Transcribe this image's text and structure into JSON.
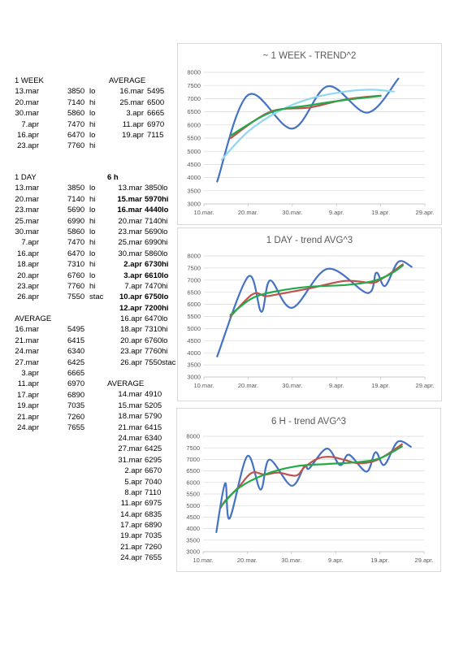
{
  "colors": {
    "actual": "#4472c4",
    "avg": "#c0504d",
    "trend": "#22a94a",
    "trend_light": "#8fd8f0",
    "grid": "#d9d9d9"
  },
  "tables": {
    "week": {
      "title": "1 WEEK",
      "rows": [
        [
          "13.mar",
          "3850",
          "lo"
        ],
        [
          "20.mar",
          "7140",
          "hi"
        ],
        [
          "30.mar",
          "5860",
          "lo"
        ],
        [
          "7.apr",
          "7470",
          "hi"
        ],
        [
          "16.apr",
          "6470",
          "lo"
        ],
        [
          "23.apr",
          "7760",
          "hi"
        ]
      ]
    },
    "week_avg": {
      "title": "AVERAGE",
      "rows": [
        [
          "16.mar",
          "5495"
        ],
        [
          "25.mar",
          "6500"
        ],
        [
          "3.apr",
          "6665"
        ],
        [
          "11.apr",
          "6970"
        ],
        [
          "19.apr",
          "7115"
        ]
      ]
    },
    "day": {
      "title": "1 DAY",
      "rows": [
        [
          "13.mar",
          "3850",
          "lo"
        ],
        [
          "20.mar",
          "7140",
          "hi"
        ],
        [
          "23.mar",
          "5690",
          "lo"
        ],
        [
          "25.mar",
          "6990",
          "hi"
        ],
        [
          "30.mar",
          "5860",
          "lo"
        ],
        [
          "7.apr",
          "7470",
          "hi"
        ],
        [
          "16.apr",
          "6470",
          "lo"
        ],
        [
          "18.apr",
          "7310",
          "hi"
        ],
        [
          "20.apr",
          "6760",
          "lo"
        ],
        [
          "23.apr",
          "7760",
          "hi"
        ],
        [
          "26.apr",
          "7550",
          "stac"
        ]
      ]
    },
    "day_avg": {
      "title": "AVERAGE",
      "rows": [
        [
          "16.mar",
          "5495"
        ],
        [
          "21.mar",
          "6415"
        ],
        [
          "24.mar",
          "6340"
        ],
        [
          "27.mar",
          "6425"
        ],
        [
          "3.apr",
          "6665"
        ],
        [
          "11.apr",
          "6970"
        ],
        [
          "17.apr",
          "6890"
        ],
        [
          "19.apr",
          "7035"
        ],
        [
          "21.apr",
          "7260"
        ],
        [
          "24.apr",
          "7655"
        ]
      ]
    },
    "h6": {
      "title": "6 h",
      "rows": [
        {
          "d": "13.mar",
          "v": "3850",
          "t": "lo",
          "bold": false
        },
        {
          "d": "15.mar",
          "v": "5970",
          "t": "hi",
          "bold": true
        },
        {
          "d": "16.mar",
          "v": "4440",
          "t": "lo",
          "bold": true
        },
        {
          "d": "20.mar",
          "v": "7140",
          "t": "hi",
          "bold": false
        },
        {
          "d": "23.mar",
          "v": "5690",
          "t": "lo",
          "bold": false
        },
        {
          "d": "25.mar",
          "v": "6990",
          "t": "hi",
          "bold": false
        },
        {
          "d": "30.mar",
          "v": "5860",
          "t": "lo",
          "bold": false
        },
        {
          "d": "2.apr",
          "v": "6730",
          "t": "hi",
          "bold": true
        },
        {
          "d": "3.apr",
          "v": "6610",
          "t": "lo",
          "bold": true
        },
        {
          "d": "7.apr",
          "v": "7470",
          "t": "hi",
          "bold": false
        },
        {
          "d": "10.apr",
          "v": "6750",
          "t": "lo",
          "bold": true
        },
        {
          "d": "12.apr",
          "v": "7200",
          "t": "hi",
          "bold": true
        },
        {
          "d": "16.apr",
          "v": "6470",
          "t": "lo",
          "bold": false
        },
        {
          "d": "18.apr",
          "v": "7310",
          "t": "hi",
          "bold": false
        },
        {
          "d": "20.apr",
          "v": "6760",
          "t": "lo",
          "bold": false
        },
        {
          "d": "23.apr",
          "v": "7760",
          "t": "hi",
          "bold": false
        },
        {
          "d": "26.apr",
          "v": "7550",
          "t": "stac",
          "bold": false
        }
      ]
    },
    "h6_avg": {
      "title": "AVERAGE",
      "rows": [
        [
          "14.mar",
          "4910"
        ],
        [
          "15.mar",
          "5205"
        ],
        [
          "18.mar",
          "5790"
        ],
        [
          "21.mar",
          "6415"
        ],
        [
          "24.mar",
          "6340"
        ],
        [
          "27.mar",
          "6425"
        ],
        [
          "31.mar",
          "6295"
        ],
        [
          "2.apr",
          "6670"
        ],
        [
          "5.apr",
          "7040"
        ],
        [
          "8.apr",
          "7110"
        ],
        [
          "11.apr",
          "6975"
        ],
        [
          "14.apr",
          "6835"
        ],
        [
          "17.apr",
          "6890"
        ],
        [
          "19.apr",
          "7035"
        ],
        [
          "21.apr",
          "7260"
        ],
        [
          "24.apr",
          "7655"
        ]
      ]
    }
  },
  "chart_data": [
    {
      "type": "line",
      "title": "~ 1 WEEK - TREND^2",
      "x_ticks": [
        "10.mar.",
        "20.mar.",
        "30.mar.",
        "9.apr.",
        "19.apr.",
        "29.apr."
      ],
      "xlim": [
        "10.mar",
        "29.apr"
      ],
      "y_ticks": [
        3000,
        3500,
        4000,
        4500,
        5000,
        5500,
        6000,
        6500,
        7000,
        7500,
        8000
      ],
      "ylim": [
        3000,
        8000
      ],
      "grid": true,
      "legend": "none",
      "series": [
        {
          "color": "#4472c4",
          "smooth": true,
          "width": 2.2,
          "points": [
            [
              "13.mar",
              3850
            ],
            [
              "20.mar",
              7140
            ],
            [
              "30.mar",
              5860
            ],
            [
              "7.apr",
              7470
            ],
            [
              "16.apr",
              6470
            ],
            [
              "23.apr",
              7760
            ]
          ]
        },
        {
          "color": "#c0504d",
          "smooth": true,
          "width": 2.2,
          "points": [
            [
              "16.mar",
              5495
            ],
            [
              "25.mar",
              6500
            ],
            [
              "3.apr",
              6665
            ],
            [
              "11.apr",
              6970
            ],
            [
              "19.apr",
              7115
            ]
          ]
        },
        {
          "color": "#8fd8f0",
          "smooth": true,
          "width": 2.2,
          "points": [
            [
              "14.mar",
              4680
            ],
            [
              "20.mar",
              5750
            ],
            [
              "27.mar",
              6530
            ],
            [
              "3.apr",
              7000
            ],
            [
              "11.apr",
              7270
            ],
            [
              "17.apr",
              7340
            ],
            [
              "22.apr",
              7270
            ]
          ]
        },
        {
          "color": "#22a94a",
          "smooth": true,
          "width": 2.2,
          "points": [
            [
              "16.mar",
              5590
            ],
            [
              "25.mar",
              6470
            ],
            [
              "3.apr",
              6750
            ],
            [
              "11.apr",
              6950
            ],
            [
              "19.apr",
              7100
            ]
          ]
        }
      ]
    },
    {
      "type": "line",
      "title": "1 DAY - trend AVG^3",
      "x_ticks": [
        "10.mar.",
        "20.mar.",
        "30.mar.",
        "9.apr.",
        "19.apr.",
        "29.apr."
      ],
      "xlim": [
        "10.mar",
        "29.apr"
      ],
      "y_ticks": [
        3000,
        3500,
        4000,
        4500,
        5000,
        5500,
        6000,
        6500,
        7000,
        7500,
        8000
      ],
      "ylim": [
        3000,
        8000
      ],
      "grid": true,
      "legend": "none",
      "series": [
        {
          "color": "#4472c4",
          "smooth": true,
          "width": 2.2,
          "points": [
            [
              "13.mar",
              3850
            ],
            [
              "20.mar",
              7140
            ],
            [
              "23.mar",
              5690
            ],
            [
              "25.mar",
              6990
            ],
            [
              "30.mar",
              5860
            ],
            [
              "7.apr",
              7470
            ],
            [
              "16.apr",
              6470
            ],
            [
              "18.apr",
              7310
            ],
            [
              "20.apr",
              6760
            ],
            [
              "23.apr",
              7760
            ],
            [
              "26.apr",
              7550
            ]
          ]
        },
        {
          "color": "#c0504d",
          "smooth": true,
          "width": 2.2,
          "points": [
            [
              "16.mar",
              5495
            ],
            [
              "21.mar",
              6415
            ],
            [
              "24.mar",
              6340
            ],
            [
              "27.mar",
              6425
            ],
            [
              "3.apr",
              6665
            ],
            [
              "11.apr",
              6970
            ],
            [
              "17.apr",
              6890
            ],
            [
              "19.apr",
              7035
            ],
            [
              "21.apr",
              7260
            ],
            [
              "24.apr",
              7655
            ]
          ]
        },
        {
          "color": "#22a94a",
          "smooth": true,
          "width": 2.2,
          "points": [
            [
              "16.mar",
              5560
            ],
            [
              "21.mar",
              6260
            ],
            [
              "27.mar",
              6560
            ],
            [
              "3.apr",
              6730
            ],
            [
              "11.apr",
              6800
            ],
            [
              "17.apr",
              6950
            ],
            [
              "21.apr",
              7230
            ],
            [
              "24.apr",
              7600
            ]
          ]
        }
      ]
    },
    {
      "type": "line",
      "title": "6 H - trend AVG^3",
      "x_ticks": [
        "10.mar.",
        "20.mar.",
        "30.mar.",
        "9.apr.",
        "19.apr.",
        "29.apr."
      ],
      "xlim": [
        "10.mar",
        "29.apr"
      ],
      "y_ticks": [
        3000,
        3500,
        4000,
        4500,
        5000,
        5500,
        6000,
        6500,
        7000,
        7500,
        8000
      ],
      "ylim": [
        3000,
        8000
      ],
      "grid": true,
      "legend": "none",
      "series": [
        {
          "color": "#4472c4",
          "smooth": true,
          "width": 2.2,
          "points": [
            [
              "13.mar",
              3850
            ],
            [
              "15.mar",
              5970
            ],
            [
              "16.mar",
              4440
            ],
            [
              "20.mar",
              7140
            ],
            [
              "23.mar",
              5690
            ],
            [
              "25.mar",
              6990
            ],
            [
              "30.mar",
              5860
            ],
            [
              "2.apr",
              6730
            ],
            [
              "3.apr",
              6610
            ],
            [
              "7.apr",
              7470
            ],
            [
              "10.apr",
              6750
            ],
            [
              "12.apr",
              7200
            ],
            [
              "16.apr",
              6470
            ],
            [
              "18.apr",
              7310
            ],
            [
              "20.apr",
              6760
            ],
            [
              "23.apr",
              7760
            ],
            [
              "26.apr",
              7550
            ]
          ]
        },
        {
          "color": "#c0504d",
          "smooth": true,
          "width": 2.2,
          "points": [
            [
              "14.mar",
              4910
            ],
            [
              "15.mar",
              5205
            ],
            [
              "18.mar",
              5790
            ],
            [
              "21.mar",
              6415
            ],
            [
              "24.mar",
              6340
            ],
            [
              "27.mar",
              6425
            ],
            [
              "31.mar",
              6295
            ],
            [
              "2.apr",
              6670
            ],
            [
              "5.apr",
              7040
            ],
            [
              "8.apr",
              7110
            ],
            [
              "11.apr",
              6975
            ],
            [
              "14.apr",
              6835
            ],
            [
              "17.apr",
              6890
            ],
            [
              "19.apr",
              7035
            ],
            [
              "21.apr",
              7260
            ],
            [
              "24.apr",
              7655
            ]
          ]
        },
        {
          "color": "#22a94a",
          "smooth": true,
          "width": 2.2,
          "points": [
            [
              "14.mar",
              4950
            ],
            [
              "18.mar",
              5750
            ],
            [
              "24.mar",
              6350
            ],
            [
              "31.mar",
              6700
            ],
            [
              "7.apr",
              6800
            ],
            [
              "14.apr",
              6880
            ],
            [
              "19.apr",
              7050
            ],
            [
              "24.apr",
              7560
            ]
          ]
        }
      ]
    }
  ]
}
